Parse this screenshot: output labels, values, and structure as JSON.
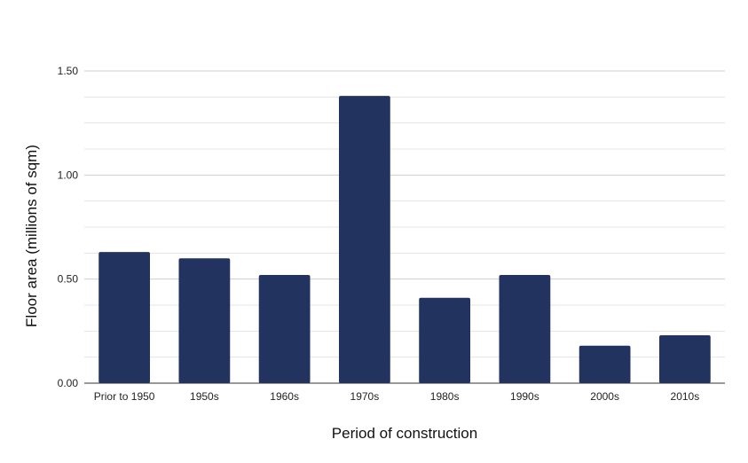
{
  "chart_data": {
    "type": "bar",
    "title": "",
    "xlabel": "Period of construction",
    "ylabel": "Floor area (millions of sqm)",
    "categories": [
      "Prior to 1950",
      "1950s",
      "1960s",
      "1970s",
      "1980s",
      "1990s",
      "2000s",
      "2010s"
    ],
    "values": [
      0.63,
      0.6,
      0.52,
      1.38,
      0.41,
      0.52,
      0.18,
      0.23
    ],
    "ylim": [
      0,
      1.5
    ],
    "yticks": [
      "0.00",
      "0.50",
      "1.00",
      "1.50"
    ],
    "grid": true,
    "legend": "none",
    "bar_color": "#22335f"
  }
}
